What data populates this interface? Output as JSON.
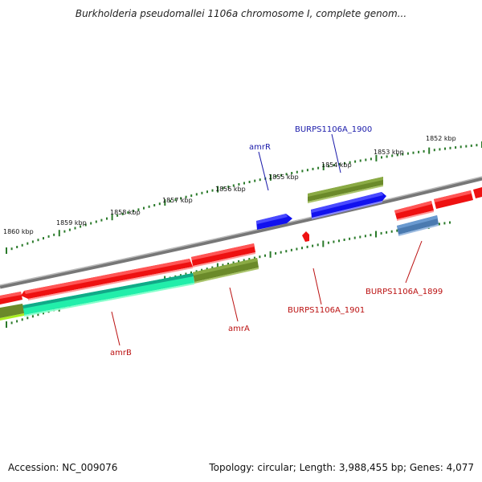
{
  "title": "Burkholderia pseudomallei 1106a chromosome I, complete genom...",
  "footer": {
    "accession": "Accession: NC_009076",
    "topology": "Topology: circular; Length: 3,988,455 bp; Genes: 4,077"
  },
  "ruler_labels": {
    "outer": [
      "1852 kbp",
      "1853 kbp",
      "1854 kbp",
      "1855 kbp",
      "1856 kbp",
      "1857 kbp",
      "1858 kbp",
      "1859 kbp",
      "1860 kbp"
    ]
  },
  "gene_labels": {
    "amrR": "amrR",
    "burps1900": "BURPS1106A_1900",
    "burps1899": "BURPS1106A_1899",
    "burps1901": "BURPS1106A_1901",
    "amrA": "amrA",
    "amrB": "amrB"
  },
  "colors": {
    "backbone": "#888888",
    "ruler_tick": "#2a7a2a",
    "red_feature": "#ee1111",
    "blue_feature": "#1111ee",
    "olive_feature": "#6b8a2a",
    "steel_feature": "#4a7ab0",
    "aqua_feature": "#22eeaa",
    "lime_feature": "#aaee22",
    "label_blue": "#1a1aaa",
    "label_red": "#bb1111"
  }
}
